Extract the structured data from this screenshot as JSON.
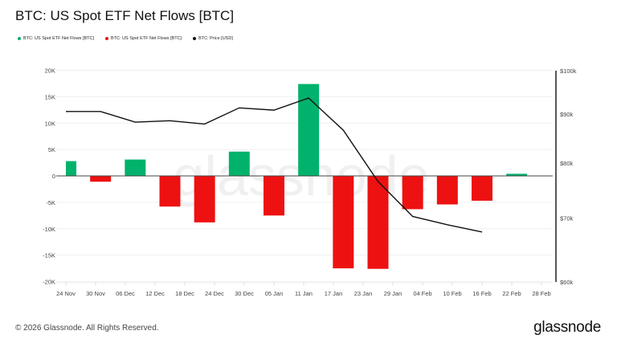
{
  "title": "BTC: US Spot ETF Net Flows [BTC]",
  "legend": [
    {
      "label": "BTC: US Spot ETF Net Flows [BTC]",
      "color": "#00b26b"
    },
    {
      "label": "BTC: US Spot ETF Net Flows [BTC]",
      "color": "#ee1111"
    },
    {
      "label": "BTC: Price [USD]",
      "color": "#111111"
    }
  ],
  "footer": {
    "copyright": "© 2026 Glassnode. All Rights Reserved.",
    "logo": "glassnode",
    "watermark": "glassnode"
  },
  "chart_data": {
    "type": "bar+line",
    "title": "BTC: US Spot ETF Net Flows [BTC]",
    "x_ticks": [
      "24 Nov",
      "30 Nov",
      "06 Dec",
      "12 Dec",
      "18 Dec",
      "24 Dec",
      "30 Dec",
      "05 Jan",
      "11 Jan",
      "17 Jan",
      "23 Jan",
      "29 Jan",
      "04 Feb",
      "10 Feb",
      "16 Feb",
      "22 Feb",
      "28 Feb"
    ],
    "y_left": {
      "ticks": [
        "20K",
        "15K",
        "10K",
        "5K",
        "0",
        "-5K",
        "-10K",
        "-15K",
        "-20K"
      ],
      "range": [
        -20000,
        20000
      ]
    },
    "y_right": {
      "ticks": [
        "$100k",
        "$90k",
        "$80k",
        "$70k",
        "$60k"
      ],
      "range": [
        60000,
        100000
      ],
      "scale": "log"
    },
    "grid": true,
    "legend_position": "top-left",
    "positive_color": "#00b26b",
    "negative_color": "#ee1111",
    "line_color": "#111111",
    "series": [
      {
        "name": "BTC: US Spot ETF Net Flows [BTC]",
        "type": "bar",
        "x": [
          "2025-11-24",
          "2025-12-01",
          "2025-12-08",
          "2025-12-15",
          "2025-12-22",
          "2025-12-29",
          "2026-01-05",
          "2026-01-12",
          "2026-01-19",
          "2026-01-26",
          "2026-02-02",
          "2026-02-09",
          "2026-02-16",
          "2026-02-23"
        ],
        "values": [
          2800,
          -1100,
          3100,
          -5800,
          -8800,
          4600,
          -7500,
          17400,
          -17500,
          -17600,
          -6300,
          -5400,
          -4700,
          400
        ]
      },
      {
        "name": "BTC: Price [USD]",
        "type": "line",
        "axis": "right",
        "x": [
          "2025-11-24",
          "2025-12-01",
          "2025-12-08",
          "2025-12-15",
          "2025-12-22",
          "2025-12-29",
          "2026-01-05",
          "2026-01-12",
          "2026-01-19",
          "2026-01-26",
          "2026-02-02",
          "2026-02-09",
          "2026-02-16"
        ],
        "values": [
          90600,
          90600,
          88300,
          88600,
          87900,
          91400,
          90900,
          93600,
          86600,
          76500,
          70300,
          68900,
          67700
        ]
      }
    ]
  }
}
